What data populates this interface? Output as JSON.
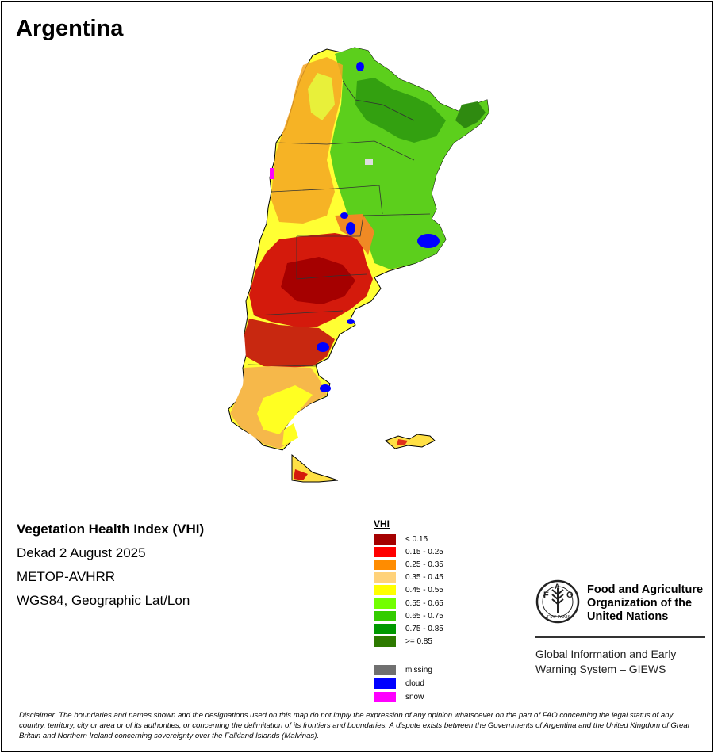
{
  "title": "Argentina",
  "info": {
    "product": "Vegetation Health Index (VHI)",
    "period": "Dekad 2 August 2025",
    "sensor": "METOP-AVHRR",
    "projection": "WGS84, Geographic Lat/Lon"
  },
  "legend": {
    "title": "VHI",
    "classes": [
      {
        "label": "< 0.15",
        "color": "#a50000"
      },
      {
        "label": "0.15 - 0.25",
        "color": "#ff0000"
      },
      {
        "label": "0.25 - 0.35",
        "color": "#ff8c00"
      },
      {
        "label": "0.35 - 0.45",
        "color": "#ffd27a"
      },
      {
        "label": "0.45 - 0.55",
        "color": "#ffff00"
      },
      {
        "label": "0.55 - 0.65",
        "color": "#73ff00"
      },
      {
        "label": "0.65 - 0.75",
        "color": "#33cc00"
      },
      {
        "label": "0.75 - 0.85",
        "color": "#009900"
      },
      {
        "label": ">= 0.85",
        "color": "#2d7a00"
      }
    ],
    "special": [
      {
        "label": "missing",
        "color": "#707070"
      },
      {
        "label": "cloud",
        "color": "#0000ff"
      },
      {
        "label": "snow",
        "color": "#ff00ff"
      }
    ]
  },
  "organization": {
    "name_lines": [
      "Food and Agriculture",
      "Organization of the",
      "United Nations"
    ],
    "logo_text": "FAO",
    "logo_motto": "FIAT PANIS",
    "giews_lines": [
      "Global Information and Early",
      "Warning System – GIEWS"
    ]
  },
  "disclaimer": "Disclaimer: The boundaries and names shown and the designations used on this map do not imply the expression of any opinion whatsoever on the part of FAO concerning the legal status of any country, territory, city or area or of its authorities, or concerning the delimitation of its frontiers and boundaries. A dispute exists between the Governments of Argentina and the United Kingdom of Great Britain and Northern Ireland concerning sovereignty over the Falkland Islands (Malvinas)."
}
